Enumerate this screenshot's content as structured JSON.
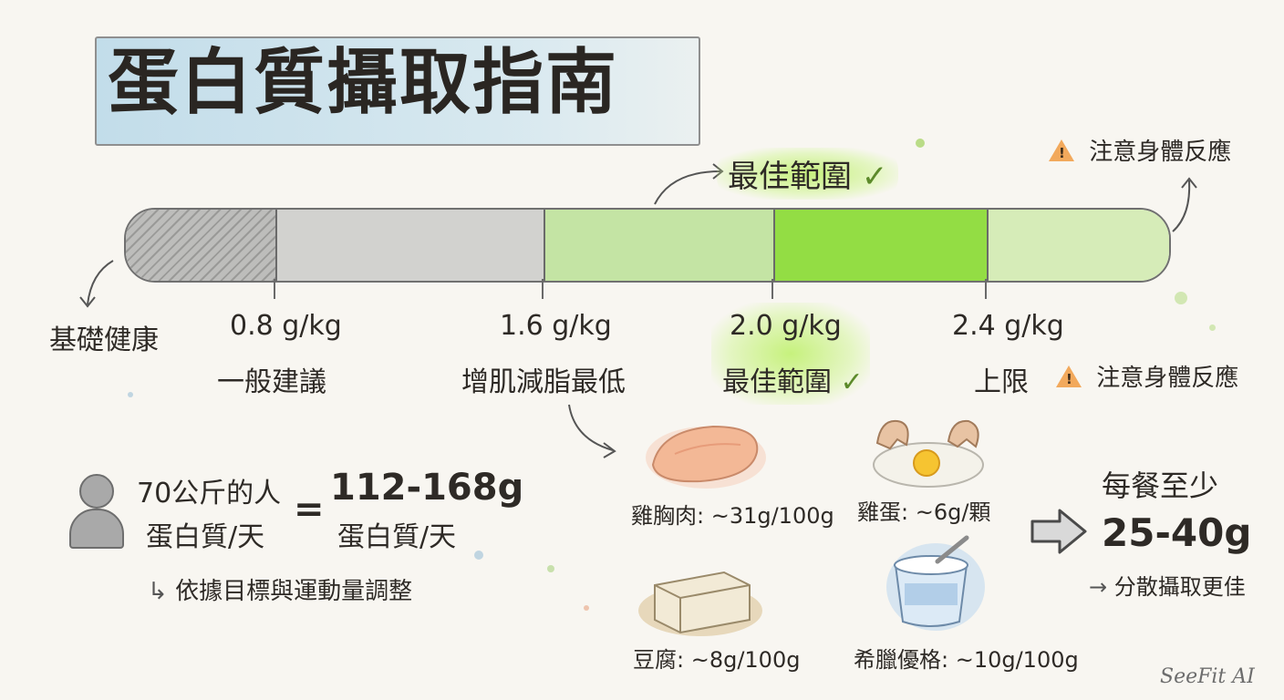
{
  "title": "蛋白質攝取指南",
  "top_labels": {
    "optimal": "最佳範圍",
    "warning": "注意身體反應"
  },
  "scale": [
    {
      "value": "",
      "label": "基礎健康"
    },
    {
      "value": "0.8 g/kg",
      "label": "一般建議"
    },
    {
      "value": "1.6 g/kg",
      "label": "增肌減脂最低"
    },
    {
      "value": "2.0 g/kg",
      "label": "最佳範圍"
    },
    {
      "value": "2.4 g/kg",
      "label": "上限",
      "note": "注意身體反應"
    }
  ],
  "example": {
    "person_line1": "70公斤的人",
    "person_line2": "蛋白質/天",
    "equals": "=",
    "result_line1": "112-168g",
    "result_line2": "蛋白質/天",
    "note": "依據目標與運動量調整"
  },
  "foods": [
    {
      "label": "雞胸肉: ~31g/100g"
    },
    {
      "label": "雞蛋: ~6g/顆"
    },
    {
      "label": "豆腐: ~8g/100g"
    },
    {
      "label": "希臘優格: ~10g/100g"
    }
  ],
  "meal": {
    "heading": "每餐至少",
    "amount": "25-40g",
    "tip": "分散攝取更佳"
  },
  "signature": "SeeFit AI",
  "colors": {
    "gray_segment": "#cfcfcd",
    "light_green": "#c7e6a8",
    "bright_green": "#8fdc3c",
    "pale_green": "#d7eeb8",
    "warning_orange": "#f2a95c"
  }
}
